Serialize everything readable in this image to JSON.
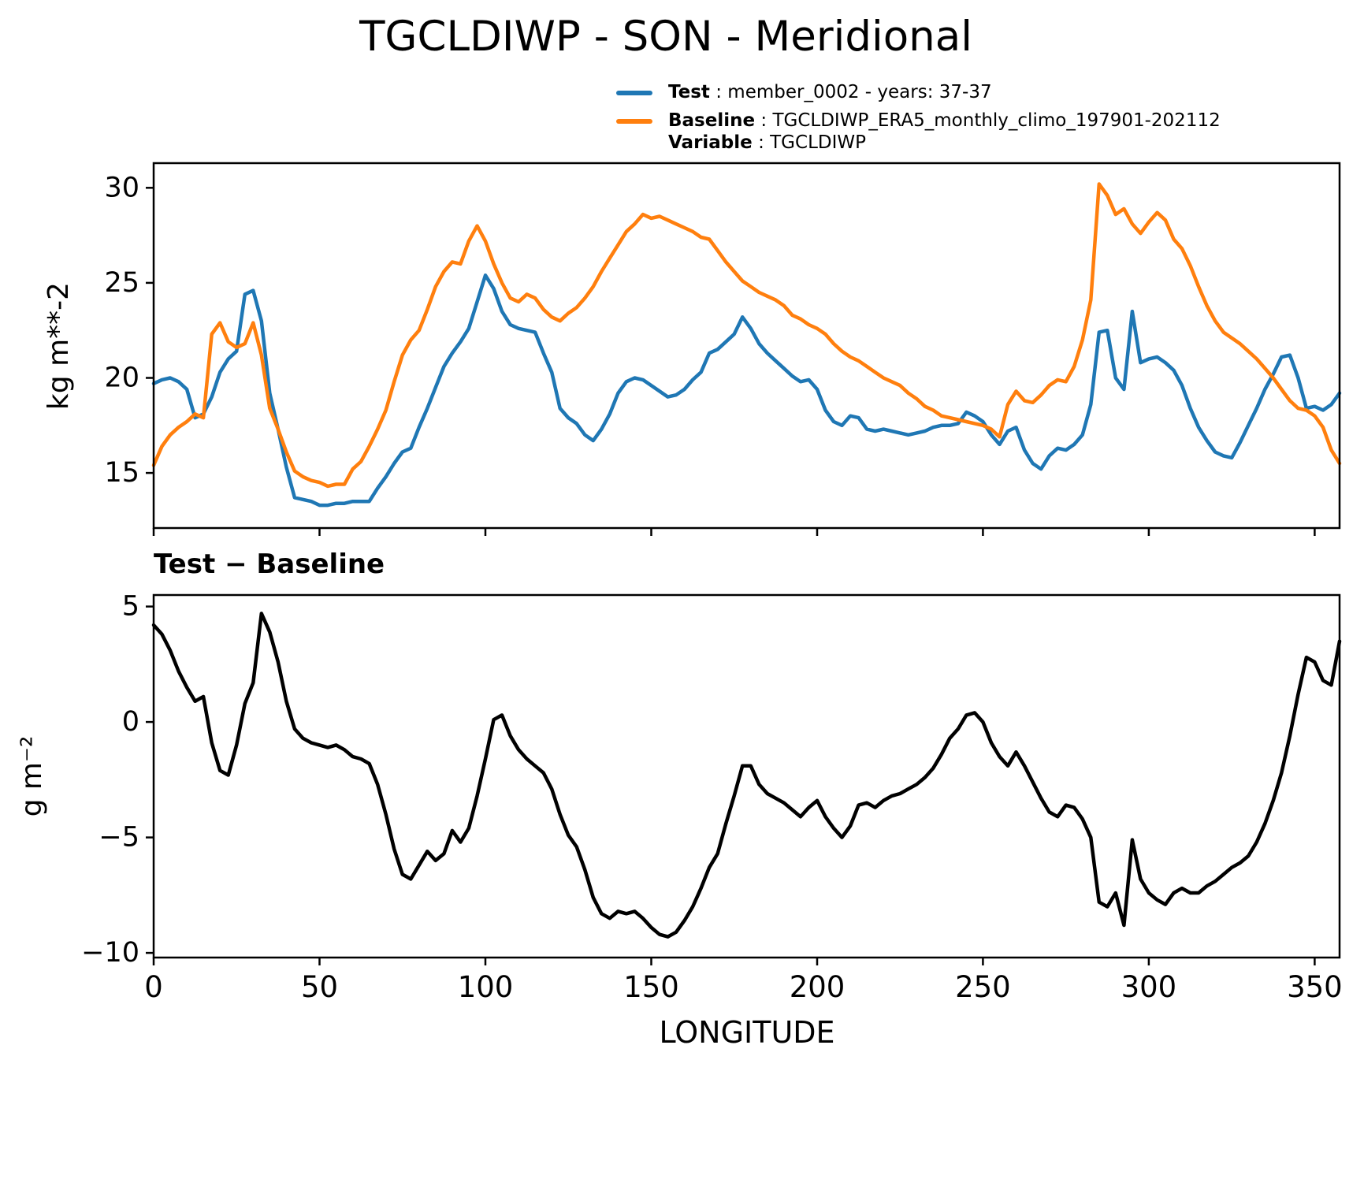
{
  "title": "TGCLDIWP - SON - Meridional",
  "legend": {
    "test_label": "Test",
    "test_desc": " : member_0002 - years: 37-37",
    "baseline_label": "Baseline",
    "baseline_desc": " : TGCLDIWP_ERA5_monthly_climo_197901-202112",
    "variable_label": "Variable",
    "variable_desc": " : TGCLDIWP"
  },
  "colors": {
    "test": "#1f77b4",
    "baseline": "#ff7f0e",
    "difference": "#000000"
  },
  "chart_data": [
    {
      "type": "line",
      "title": "",
      "xlabel": "",
      "ylabel": "kg m**-2",
      "xlim": [
        0,
        357.5
      ],
      "ylim": [
        12.1,
        31.3
      ],
      "xticks": [
        0,
        50,
        100,
        150,
        200,
        250,
        300,
        350
      ],
      "yticks": [
        15,
        20,
        25,
        30
      ],
      "grid": false,
      "legend_position": "upper-right-above",
      "series": [
        {
          "name": "Test",
          "color": "#1f77b4",
          "line_width": 4.5,
          "x_start": 0,
          "x_step": 2.5,
          "y": [
            19.7,
            19.9,
            20.0,
            19.8,
            19.4,
            17.9,
            18.1,
            19.0,
            20.3,
            21.0,
            21.4,
            24.4,
            24.6,
            23.0,
            19.2,
            17.3,
            15.3,
            13.7,
            13.6,
            13.5,
            13.3,
            13.3,
            13.4,
            13.4,
            13.5,
            13.5,
            13.5,
            14.2,
            14.8,
            15.5,
            16.1,
            16.3,
            17.4,
            18.4,
            19.5,
            20.6,
            21.3,
            21.9,
            22.6,
            24.0,
            25.4,
            24.7,
            23.5,
            22.8,
            22.6,
            22.5,
            22.4,
            21.3,
            20.3,
            18.4,
            17.9,
            17.6,
            17.0,
            16.7,
            17.3,
            18.1,
            19.2,
            19.8,
            20.0,
            19.9,
            19.6,
            19.3,
            19.0,
            19.1,
            19.4,
            19.9,
            20.3,
            21.3,
            21.5,
            21.9,
            22.3,
            23.2,
            22.6,
            21.8,
            21.3,
            20.9,
            20.5,
            20.1,
            19.8,
            19.9,
            19.4,
            18.3,
            17.7,
            17.5,
            18.0,
            17.9,
            17.3,
            17.2,
            17.3,
            17.2,
            17.1,
            17.0,
            17.1,
            17.2,
            17.4,
            17.5,
            17.5,
            17.6,
            18.2,
            18.0,
            17.7,
            17.0,
            16.5,
            17.2,
            17.4,
            16.2,
            15.5,
            15.2,
            15.9,
            16.3,
            16.2,
            16.5,
            17.0,
            18.6,
            22.4,
            22.5,
            20.0,
            19.4,
            23.5,
            20.8,
            21.0,
            21.1,
            20.8,
            20.4,
            19.6,
            18.4,
            17.4,
            16.7,
            16.1,
            15.9,
            15.8,
            16.6,
            17.5,
            18.4,
            19.4,
            20.2,
            21.1,
            21.2,
            20.0,
            18.4,
            18.5,
            18.3,
            18.6,
            19.2
          ]
        },
        {
          "name": "Baseline",
          "color": "#ff7f0e",
          "line_width": 4.5,
          "x_start": 0,
          "x_step": 2.5,
          "y": [
            15.4,
            16.4,
            17.0,
            17.4,
            17.7,
            18.1,
            17.9,
            22.3,
            22.9,
            21.9,
            21.6,
            21.8,
            22.9,
            21.2,
            18.4,
            17.3,
            16.1,
            15.1,
            14.8,
            14.6,
            14.5,
            14.3,
            14.4,
            14.4,
            15.2,
            15.6,
            16.4,
            17.3,
            18.3,
            19.8,
            21.2,
            22.0,
            22.5,
            23.6,
            24.8,
            25.6,
            26.1,
            26.0,
            27.2,
            28.0,
            27.2,
            26.0,
            25.0,
            24.2,
            24.0,
            24.4,
            24.2,
            23.6,
            23.2,
            23.0,
            23.4,
            23.7,
            24.2,
            24.8,
            25.6,
            26.3,
            27.0,
            27.7,
            28.1,
            28.6,
            28.4,
            28.5,
            28.3,
            28.1,
            27.9,
            27.7,
            27.4,
            27.3,
            26.7,
            26.1,
            25.6,
            25.1,
            24.8,
            24.5,
            24.3,
            24.1,
            23.8,
            23.3,
            23.1,
            22.8,
            22.6,
            22.3,
            21.8,
            21.4,
            21.1,
            20.9,
            20.6,
            20.3,
            20.0,
            19.8,
            19.6,
            19.2,
            18.9,
            18.5,
            18.3,
            18.0,
            17.9,
            17.8,
            17.7,
            17.6,
            17.5,
            17.3,
            16.9,
            18.6,
            19.3,
            18.8,
            18.7,
            19.1,
            19.6,
            19.9,
            19.8,
            20.6,
            22.0,
            24.1,
            30.2,
            29.6,
            28.6,
            28.9,
            28.1,
            27.6,
            28.2,
            28.7,
            28.3,
            27.3,
            26.8,
            25.9,
            24.8,
            23.8,
            23.0,
            22.4,
            22.1,
            21.8,
            21.4,
            21.0,
            20.5,
            20.0,
            19.4,
            18.8,
            18.4,
            18.3,
            18.0,
            17.4,
            16.2,
            15.5
          ]
        }
      ]
    },
    {
      "type": "line",
      "title": "Test − Baseline",
      "xlabel": "LONGITUDE",
      "ylabel": "g m⁻²",
      "xlim": [
        0,
        357.5
      ],
      "ylim": [
        -10.2,
        5.5
      ],
      "xticks": [
        0,
        50,
        100,
        150,
        200,
        250,
        300,
        350
      ],
      "yticks": [
        -10,
        -5,
        0,
        5
      ],
      "grid": false,
      "series": [
        {
          "name": "Test minus Baseline",
          "color": "#000000",
          "line_width": 4.5,
          "x_start": 0,
          "x_step": 2.5,
          "y": [
            4.2,
            3.8,
            3.1,
            2.2,
            1.5,
            0.9,
            1.1,
            -0.9,
            -2.1,
            -2.3,
            -1.0,
            0.8,
            1.7,
            4.7,
            3.9,
            2.6,
            0.9,
            -0.3,
            -0.7,
            -0.9,
            -1.0,
            -1.1,
            -1.0,
            -1.2,
            -1.5,
            -1.6,
            -1.8,
            -2.7,
            -4.0,
            -5.5,
            -6.6,
            -6.8,
            -6.2,
            -5.6,
            -6.0,
            -5.7,
            -4.7,
            -5.2,
            -4.6,
            -3.2,
            -1.6,
            0.1,
            0.3,
            -0.6,
            -1.2,
            -1.6,
            -1.9,
            -2.2,
            -2.9,
            -4.0,
            -4.9,
            -5.4,
            -6.4,
            -7.6,
            -8.3,
            -8.5,
            -8.2,
            -8.3,
            -8.2,
            -8.5,
            -8.9,
            -9.2,
            -9.3,
            -9.1,
            -8.6,
            -8.0,
            -7.2,
            -6.3,
            -5.7,
            -4.4,
            -3.2,
            -1.9,
            -1.9,
            -2.7,
            -3.1,
            -3.3,
            -3.5,
            -3.8,
            -4.1,
            -3.7,
            -3.4,
            -4.1,
            -4.6,
            -5.0,
            -4.5,
            -3.6,
            -3.5,
            -3.7,
            -3.4,
            -3.2,
            -3.1,
            -2.9,
            -2.7,
            -2.4,
            -2.0,
            -1.4,
            -0.7,
            -0.3,
            0.3,
            0.4,
            0.0,
            -0.9,
            -1.5,
            -1.9,
            -1.3,
            -1.9,
            -2.6,
            -3.3,
            -3.9,
            -4.1,
            -3.6,
            -3.7,
            -4.2,
            -5.0,
            -7.8,
            -8.0,
            -7.4,
            -8.8,
            -5.1,
            -6.8,
            -7.4,
            -7.7,
            -7.9,
            -7.4,
            -7.2,
            -7.4,
            -7.4,
            -7.1,
            -6.9,
            -6.6,
            -6.3,
            -6.1,
            -5.8,
            -5.2,
            -4.4,
            -3.4,
            -2.2,
            -0.6,
            1.2,
            2.8,
            2.6,
            1.8,
            1.6,
            3.5
          ]
        }
      ]
    }
  ]
}
